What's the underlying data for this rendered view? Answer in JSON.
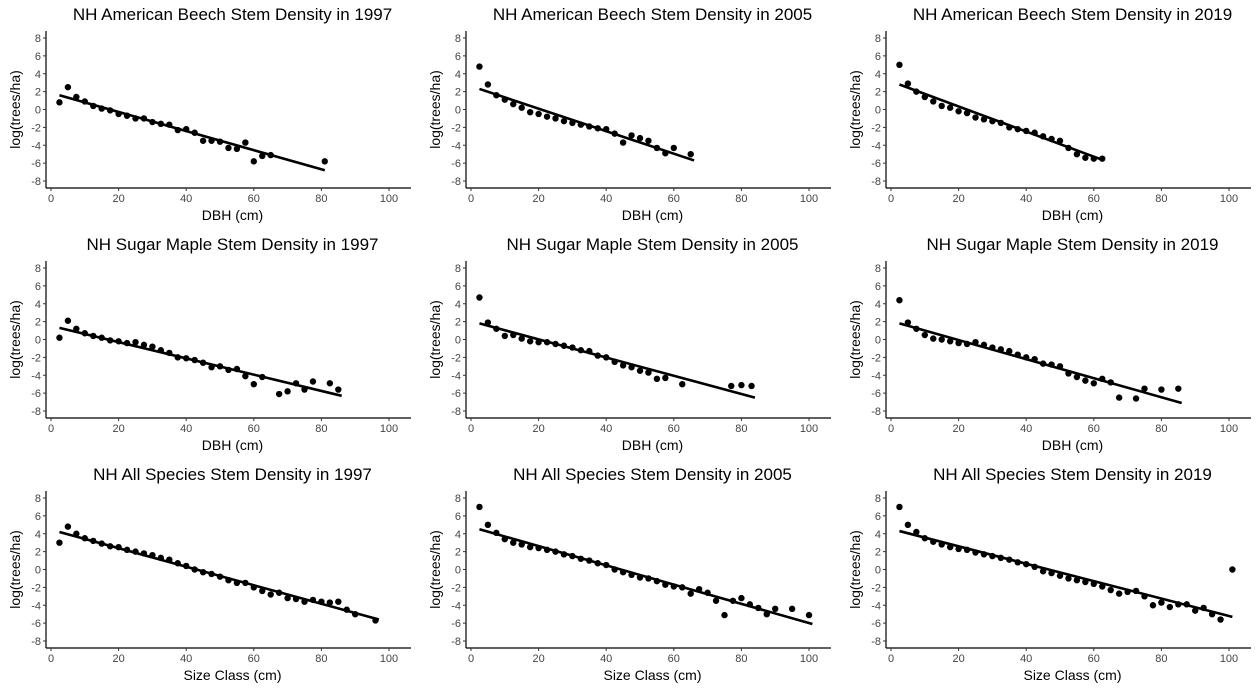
{
  "chart_data": [
    {
      "type": "scatter",
      "title": "NH American Beech Stem Density in 1997",
      "xlabel": "DBH (cm)",
      "ylabel": "log(trees/ha)",
      "xlim": [
        0,
        100
      ],
      "ylim": [
        -8,
        8
      ],
      "xticks": [
        0,
        20,
        40,
        60,
        80,
        100
      ],
      "yticks": [
        8,
        6,
        4,
        2,
        0,
        -2,
        -4,
        -6,
        -8
      ],
      "points": [
        [
          2.5,
          0.8
        ],
        [
          5,
          2.5
        ],
        [
          7.5,
          1.4
        ],
        [
          10,
          0.9
        ],
        [
          12.5,
          0.4
        ],
        [
          15,
          0.1
        ],
        [
          17.5,
          -0.1
        ],
        [
          20,
          -0.5
        ],
        [
          22.5,
          -0.7
        ],
        [
          25,
          -1.0
        ],
        [
          27.5,
          -1.0
        ],
        [
          30,
          -1.4
        ],
        [
          32.5,
          -1.6
        ],
        [
          35,
          -1.7
        ],
        [
          37.5,
          -2.3
        ],
        [
          40,
          -2.2
        ],
        [
          42.5,
          -2.6
        ],
        [
          45,
          -3.5
        ],
        [
          47.5,
          -3.5
        ],
        [
          50,
          -3.6
        ],
        [
          52.5,
          -4.3
        ],
        [
          55,
          -4.4
        ],
        [
          57.5,
          -3.7
        ],
        [
          60,
          -5.8
        ],
        [
          62.5,
          -5.2
        ],
        [
          65,
          -5.1
        ],
        [
          81,
          -5.8
        ]
      ],
      "fit": [
        [
          2.5,
          1.6
        ],
        [
          81,
          -6.8
        ]
      ]
    },
    {
      "type": "scatter",
      "title": "NH American Beech Stem Density in 2005",
      "xlabel": "DBH (cm)",
      "ylabel": "log(trees/ha)",
      "xlim": [
        0,
        100
      ],
      "ylim": [
        -8,
        8
      ],
      "xticks": [
        0,
        20,
        40,
        60,
        80,
        100
      ],
      "yticks": [
        8,
        6,
        4,
        2,
        0,
        -2,
        -4,
        -6,
        -8
      ],
      "points": [
        [
          2.5,
          4.8
        ],
        [
          5,
          2.8
        ],
        [
          7.5,
          1.6
        ],
        [
          10,
          1.1
        ],
        [
          12.5,
          0.6
        ],
        [
          15,
          0.2
        ],
        [
          17.5,
          -0.3
        ],
        [
          20,
          -0.5
        ],
        [
          22.5,
          -0.8
        ],
        [
          25,
          -1.0
        ],
        [
          27.5,
          -1.3
        ],
        [
          30,
          -1.5
        ],
        [
          32.5,
          -1.7
        ],
        [
          35,
          -1.9
        ],
        [
          37.5,
          -2.1
        ],
        [
          40,
          -2.2
        ],
        [
          42.5,
          -2.7
        ],
        [
          45,
          -3.7
        ],
        [
          47.5,
          -2.9
        ],
        [
          50,
          -3.2
        ],
        [
          52.5,
          -3.5
        ],
        [
          55,
          -4.3
        ],
        [
          57.5,
          -4.9
        ],
        [
          60,
          -4.3
        ],
        [
          65,
          -5.0
        ]
      ],
      "fit": [
        [
          2.5,
          2.3
        ],
        [
          66,
          -5.7
        ]
      ]
    },
    {
      "type": "scatter",
      "title": "NH American Beech Stem Density in 2019",
      "xlabel": "DBH (cm)",
      "ylabel": "log(trees/ha)",
      "xlim": [
        0,
        100
      ],
      "ylim": [
        -8,
        8
      ],
      "xticks": [
        0,
        20,
        40,
        60,
        80,
        100
      ],
      "yticks": [
        8,
        6,
        4,
        2,
        0,
        -2,
        -4,
        -6,
        -8
      ],
      "points": [
        [
          2.5,
          5.0
        ],
        [
          5,
          2.9
        ],
        [
          7.5,
          2.0
        ],
        [
          10,
          1.4
        ],
        [
          12.5,
          0.9
        ],
        [
          15,
          0.4
        ],
        [
          17.5,
          0.2
        ],
        [
          20,
          -0.2
        ],
        [
          22.5,
          -0.4
        ],
        [
          25,
          -0.9
        ],
        [
          27.5,
          -1.1
        ],
        [
          30,
          -1.3
        ],
        [
          32.5,
          -1.5
        ],
        [
          35,
          -2.0
        ],
        [
          37.5,
          -2.2
        ],
        [
          40,
          -2.4
        ],
        [
          42.5,
          -2.6
        ],
        [
          45,
          -3.0
        ],
        [
          47.5,
          -3.3
        ],
        [
          50,
          -3.5
        ],
        [
          52.5,
          -4.3
        ],
        [
          55,
          -5.0
        ],
        [
          57.5,
          -5.4
        ],
        [
          60,
          -5.5
        ],
        [
          62.5,
          -5.5
        ]
      ],
      "fit": [
        [
          2.5,
          2.8
        ],
        [
          63,
          -5.7
        ]
      ]
    },
    {
      "type": "scatter",
      "title": "NH Sugar Maple Stem Density in 1997",
      "xlabel": "DBH (cm)",
      "ylabel": "log(trees/ha)",
      "xlim": [
        0,
        100
      ],
      "ylim": [
        -8,
        8
      ],
      "xticks": [
        0,
        20,
        40,
        60,
        80,
        100
      ],
      "yticks": [
        8,
        6,
        4,
        2,
        0,
        -2,
        -4,
        -6,
        -8
      ],
      "points": [
        [
          2.5,
          0.2
        ],
        [
          5,
          2.1
        ],
        [
          7.5,
          1.2
        ],
        [
          10,
          0.7
        ],
        [
          12.5,
          0.4
        ],
        [
          15,
          0.2
        ],
        [
          17.5,
          -0.1
        ],
        [
          20,
          -0.2
        ],
        [
          22.5,
          -0.4
        ],
        [
          25,
          -0.3
        ],
        [
          27.5,
          -0.6
        ],
        [
          30,
          -0.8
        ],
        [
          32.5,
          -1.2
        ],
        [
          35,
          -1.5
        ],
        [
          37.5,
          -2.0
        ],
        [
          40,
          -2.1
        ],
        [
          42.5,
          -2.3
        ],
        [
          45,
          -2.6
        ],
        [
          47.5,
          -3.1
        ],
        [
          50,
          -3.0
        ],
        [
          52.5,
          -3.4
        ],
        [
          55,
          -3.3
        ],
        [
          57.5,
          -4.1
        ],
        [
          60,
          -5.0
        ],
        [
          62.5,
          -4.2
        ],
        [
          67.5,
          -6.1
        ],
        [
          70,
          -5.8
        ],
        [
          72.5,
          -4.9
        ],
        [
          75,
          -5.6
        ],
        [
          77.5,
          -4.7
        ],
        [
          82.5,
          -4.9
        ],
        [
          85,
          -5.6
        ]
      ],
      "fit": [
        [
          2.5,
          1.3
        ],
        [
          86,
          -6.3
        ]
      ]
    },
    {
      "type": "scatter",
      "title": "NH Sugar Maple Stem Density in 2005",
      "xlabel": "DBH (cm)",
      "ylabel": "log(trees/ha)",
      "xlim": [
        0,
        100
      ],
      "ylim": [
        -8,
        8
      ],
      "xticks": [
        0,
        20,
        40,
        60,
        80,
        100
      ],
      "yticks": [
        8,
        6,
        4,
        2,
        0,
        -2,
        -4,
        -6,
        -8
      ],
      "points": [
        [
          2.5,
          4.7
        ],
        [
          5,
          1.9
        ],
        [
          7.5,
          1.2
        ],
        [
          10,
          0.4
        ],
        [
          12.5,
          0.5
        ],
        [
          15,
          0.1
        ],
        [
          17.5,
          -0.2
        ],
        [
          20,
          -0.3
        ],
        [
          22.5,
          -0.3
        ],
        [
          25,
          -0.5
        ],
        [
          27.5,
          -0.7
        ],
        [
          30,
          -0.9
        ],
        [
          32.5,
          -1.2
        ],
        [
          35,
          -1.3
        ],
        [
          37.5,
          -1.8
        ],
        [
          40,
          -2.0
        ],
        [
          42.5,
          -2.5
        ],
        [
          45,
          -2.9
        ],
        [
          47.5,
          -3.1
        ],
        [
          50,
          -3.5
        ],
        [
          52.5,
          -3.7
        ],
        [
          55,
          -4.4
        ],
        [
          57.5,
          -4.3
        ],
        [
          62.5,
          -5.0
        ],
        [
          77,
          -5.2
        ],
        [
          80,
          -5.1
        ],
        [
          83,
          -5.2
        ]
      ],
      "fit": [
        [
          2.5,
          1.8
        ],
        [
          84,
          -6.5
        ]
      ]
    },
    {
      "type": "scatter",
      "title": "NH Sugar Maple Stem Density in 2019",
      "xlabel": "DBH (cm)",
      "ylabel": "log(trees/ha)",
      "xlim": [
        0,
        100
      ],
      "ylim": [
        -8,
        8
      ],
      "xticks": [
        0,
        20,
        40,
        60,
        80,
        100
      ],
      "yticks": [
        8,
        6,
        4,
        2,
        0,
        -2,
        -4,
        -6,
        -8
      ],
      "points": [
        [
          2.5,
          4.4
        ],
        [
          5,
          1.9
        ],
        [
          7.5,
          1.2
        ],
        [
          10,
          0.5
        ],
        [
          12.5,
          0.1
        ],
        [
          15,
          0.0
        ],
        [
          17.5,
          -0.2
        ],
        [
          20,
          -0.4
        ],
        [
          22.5,
          -0.5
        ],
        [
          25,
          -0.3
        ],
        [
          27.5,
          -0.6
        ],
        [
          30,
          -0.9
        ],
        [
          32.5,
          -1.1
        ],
        [
          35,
          -1.3
        ],
        [
          37.5,
          -1.7
        ],
        [
          40,
          -2.0
        ],
        [
          42.5,
          -2.2
        ],
        [
          45,
          -2.7
        ],
        [
          47.5,
          -2.8
        ],
        [
          50,
          -3.0
        ],
        [
          52.5,
          -3.8
        ],
        [
          55,
          -4.2
        ],
        [
          57.5,
          -4.6
        ],
        [
          60,
          -4.9
        ],
        [
          62.5,
          -4.4
        ],
        [
          65,
          -4.8
        ],
        [
          67.5,
          -6.5
        ],
        [
          72.5,
          -6.6
        ],
        [
          75,
          -5.5
        ],
        [
          80,
          -5.6
        ],
        [
          85,
          -5.5
        ]
      ],
      "fit": [
        [
          2.5,
          1.8
        ],
        [
          86,
          -7.1
        ]
      ]
    },
    {
      "type": "scatter",
      "title": "NH All Species Stem Density in 1997",
      "xlabel": "Size Class (cm)",
      "ylabel": "log(trees/ha)",
      "xlim": [
        0,
        100
      ],
      "ylim": [
        -8,
        8
      ],
      "xticks": [
        0,
        20,
        40,
        60,
        80,
        100
      ],
      "yticks": [
        8,
        6,
        4,
        2,
        0,
        -2,
        -4,
        -6,
        -8
      ],
      "points": [
        [
          2.5,
          3.0
        ],
        [
          5,
          4.8
        ],
        [
          7.5,
          4.0
        ],
        [
          10,
          3.5
        ],
        [
          12.5,
          3.2
        ],
        [
          15,
          2.9
        ],
        [
          17.5,
          2.6
        ],
        [
          20,
          2.5
        ],
        [
          22.5,
          2.2
        ],
        [
          25,
          2.0
        ],
        [
          27.5,
          1.8
        ],
        [
          30,
          1.6
        ],
        [
          32.5,
          1.3
        ],
        [
          35,
          1.1
        ],
        [
          37.5,
          0.7
        ],
        [
          40,
          0.4
        ],
        [
          42.5,
          0.0
        ],
        [
          45,
          -0.3
        ],
        [
          47.5,
          -0.5
        ],
        [
          50,
          -0.8
        ],
        [
          52.5,
          -1.2
        ],
        [
          55,
          -1.5
        ],
        [
          57.5,
          -1.5
        ],
        [
          60,
          -2.0
        ],
        [
          62.5,
          -2.4
        ],
        [
          65,
          -2.8
        ],
        [
          67.5,
          -2.6
        ],
        [
          70,
          -3.2
        ],
        [
          72.5,
          -3.3
        ],
        [
          75,
          -3.6
        ],
        [
          77.5,
          -3.4
        ],
        [
          80,
          -3.6
        ],
        [
          82.5,
          -3.7
        ],
        [
          85,
          -3.6
        ],
        [
          87.5,
          -4.5
        ],
        [
          90,
          -5.0
        ],
        [
          96,
          -5.7
        ]
      ],
      "fit": [
        [
          2.5,
          4.2
        ],
        [
          97,
          -5.6
        ]
      ]
    },
    {
      "type": "scatter",
      "title": "NH All Species Stem Density in 2005",
      "xlabel": "Size Class (cm)",
      "ylabel": "log(trees/ha)",
      "xlim": [
        0,
        100
      ],
      "ylim": [
        -8,
        8
      ],
      "xticks": [
        0,
        20,
        40,
        60,
        80,
        100
      ],
      "yticks": [
        8,
        6,
        4,
        2,
        0,
        -2,
        -4,
        -6,
        -8
      ],
      "points": [
        [
          2.5,
          7.0
        ],
        [
          5,
          5.0
        ],
        [
          7.5,
          4.1
        ],
        [
          10,
          3.4
        ],
        [
          12.5,
          3.0
        ],
        [
          15,
          2.8
        ],
        [
          17.5,
          2.5
        ],
        [
          20,
          2.4
        ],
        [
          22.5,
          2.2
        ],
        [
          25,
          2.0
        ],
        [
          27.5,
          1.7
        ],
        [
          30,
          1.5
        ],
        [
          32.5,
          1.2
        ],
        [
          35,
          1.0
        ],
        [
          37.5,
          0.7
        ],
        [
          40,
          0.5
        ],
        [
          42.5,
          0.0
        ],
        [
          45,
          -0.3
        ],
        [
          47.5,
          -0.6
        ],
        [
          50,
          -0.9
        ],
        [
          52.5,
          -1.0
        ],
        [
          55,
          -1.3
        ],
        [
          57.5,
          -1.7
        ],
        [
          60,
          -1.9
        ],
        [
          62.5,
          -2.0
        ],
        [
          65,
          -2.7
        ],
        [
          67.5,
          -2.2
        ],
        [
          70,
          -2.6
        ],
        [
          72.5,
          -3.5
        ],
        [
          75,
          -5.1
        ],
        [
          77.5,
          -3.5
        ],
        [
          80,
          -3.2
        ],
        [
          82.5,
          -3.9
        ],
        [
          85,
          -4.3
        ],
        [
          87.5,
          -5.0
        ],
        [
          90,
          -4.4
        ],
        [
          95,
          -4.4
        ],
        [
          100,
          -5.1
        ]
      ],
      "fit": [
        [
          2.5,
          4.5
        ],
        [
          101,
          -6.1
        ]
      ]
    },
    {
      "type": "scatter",
      "title": "NH All Species Stem Density in 2019",
      "xlabel": "Size Class (cm)",
      "ylabel": "log(trees/ha)",
      "xlim": [
        0,
        100
      ],
      "ylim": [
        -8,
        8
      ],
      "xticks": [
        0,
        20,
        40,
        60,
        80,
        100
      ],
      "yticks": [
        8,
        6,
        4,
        2,
        0,
        -2,
        -4,
        -6,
        -8
      ],
      "points": [
        [
          2.5,
          7.0
        ],
        [
          5,
          5.0
        ],
        [
          7.5,
          4.2
        ],
        [
          10,
          3.5
        ],
        [
          12.5,
          3.1
        ],
        [
          15,
          2.8
        ],
        [
          17.5,
          2.5
        ],
        [
          20,
          2.3
        ],
        [
          22.5,
          2.2
        ],
        [
          25,
          1.9
        ],
        [
          27.5,
          1.7
        ],
        [
          30,
          1.5
        ],
        [
          32.5,
          1.3
        ],
        [
          35,
          1.1
        ],
        [
          37.5,
          0.8
        ],
        [
          40,
          0.6
        ],
        [
          42.5,
          0.3
        ],
        [
          45,
          -0.2
        ],
        [
          47.5,
          -0.4
        ],
        [
          50,
          -0.7
        ],
        [
          52.5,
          -1.0
        ],
        [
          55,
          -1.2
        ],
        [
          57.5,
          -1.4
        ],
        [
          60,
          -1.6
        ],
        [
          62.5,
          -1.9
        ],
        [
          65,
          -2.3
        ],
        [
          67.5,
          -2.7
        ],
        [
          70,
          -2.5
        ],
        [
          72.5,
          -2.4
        ],
        [
          75,
          -3.0
        ],
        [
          77.5,
          -4.0
        ],
        [
          80,
          -3.7
        ],
        [
          82.5,
          -4.2
        ],
        [
          85,
          -3.9
        ],
        [
          87.5,
          -3.9
        ],
        [
          90,
          -4.6
        ],
        [
          92.5,
          -4.3
        ],
        [
          95,
          -5.0
        ],
        [
          97.5,
          -5.6
        ],
        [
          101,
          0.0
        ]
      ],
      "fit": [
        [
          2.5,
          4.3
        ],
        [
          101,
          -5.3
        ]
      ]
    }
  ]
}
